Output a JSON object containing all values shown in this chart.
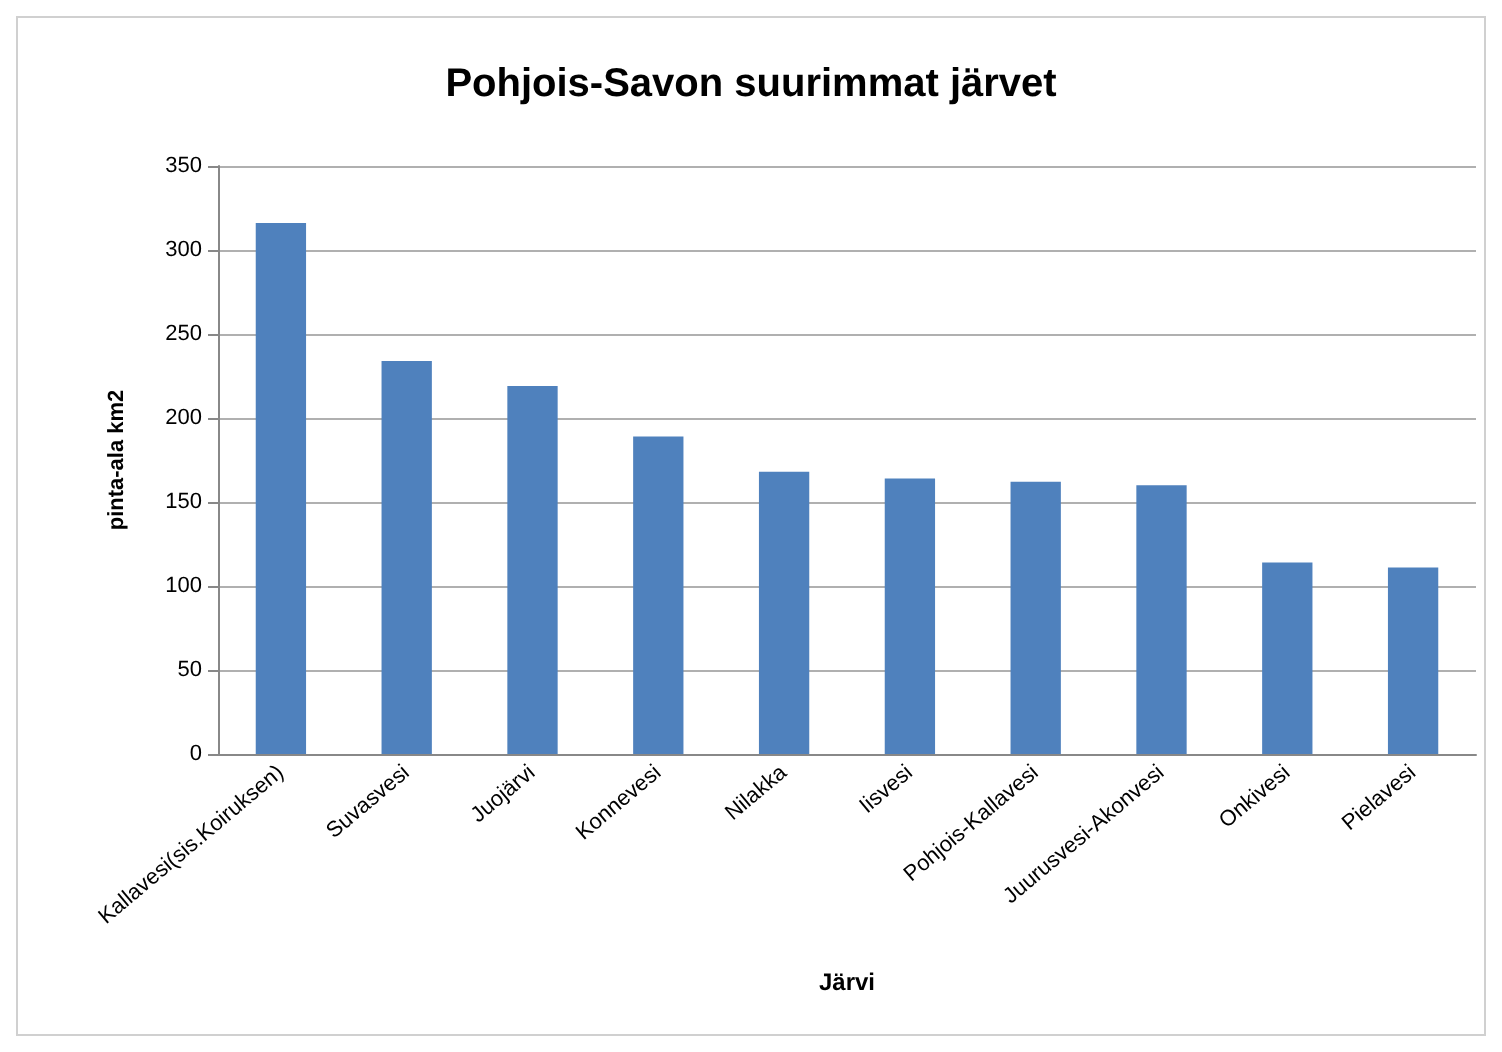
{
  "chart_data": {
    "type": "bar",
    "title": "Pohjois-Savon suurimmat järvet",
    "xlabel": "Järvi",
    "ylabel": "pinta-ala km2",
    "categories": [
      "Kallavesi(sis.Koiruksen)",
      "Suvasvesi",
      "Juojärvi",
      "Konnevesi",
      "Nilakka",
      "Iisvesi",
      "Pohjois-Kallavesi",
      "Juurusvesi-Akonvesi",
      "Onkivesi",
      "Pielavesi"
    ],
    "values": [
      316,
      234,
      219,
      189,
      168,
      164,
      162,
      160,
      114,
      111
    ],
    "color": "#4f81bd",
    "ylim": [
      0,
      350
    ],
    "yticks": [
      0,
      50,
      100,
      150,
      200,
      250,
      300,
      350
    ],
    "grid": true
  }
}
